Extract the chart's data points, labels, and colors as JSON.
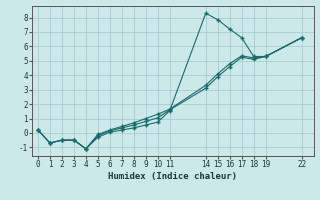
{
  "xlabel": "Humidex (Indice chaleur)",
  "bg_color": "#cce8e8",
  "grid_color": "#aacccc",
  "line_color": "#1a6b6b",
  "xlim": [
    -0.5,
    23.0
  ],
  "ylim": [
    -1.6,
    8.8
  ],
  "yticks": [
    -1,
    0,
    1,
    2,
    3,
    4,
    5,
    6,
    7,
    8
  ],
  "xticks": [
    0,
    1,
    2,
    3,
    4,
    5,
    6,
    7,
    8,
    9,
    10,
    11,
    14,
    15,
    16,
    17,
    18,
    19,
    22
  ],
  "line1_x": [
    0,
    1,
    2,
    3,
    4,
    5,
    6,
    7,
    8,
    9,
    10,
    11,
    14,
    15,
    16,
    17,
    18,
    19,
    22
  ],
  "line1_y": [
    0.2,
    -0.7,
    -0.5,
    -0.5,
    -1.1,
    -0.3,
    0.05,
    0.2,
    0.35,
    0.55,
    0.75,
    1.55,
    8.3,
    7.85,
    7.2,
    6.6,
    5.3,
    5.3,
    6.6
  ],
  "line2_x": [
    0,
    1,
    2,
    3,
    4,
    5,
    6,
    7,
    8,
    9,
    10,
    11,
    14,
    15,
    16,
    17,
    18,
    19,
    22
  ],
  "line2_y": [
    0.2,
    -0.7,
    -0.5,
    -0.5,
    -1.1,
    -0.2,
    0.15,
    0.35,
    0.55,
    0.8,
    1.05,
    1.6,
    3.1,
    3.9,
    4.6,
    5.25,
    5.1,
    5.3,
    6.6
  ],
  "line3_x": [
    0,
    1,
    2,
    3,
    4,
    5,
    6,
    7,
    8,
    9,
    10,
    11,
    14,
    15,
    16,
    17,
    18,
    19,
    22
  ],
  "line3_y": [
    0.2,
    -0.7,
    -0.5,
    -0.5,
    -1.1,
    -0.1,
    0.2,
    0.45,
    0.7,
    1.0,
    1.3,
    1.65,
    3.3,
    4.1,
    4.8,
    5.35,
    5.2,
    5.3,
    6.6
  ]
}
